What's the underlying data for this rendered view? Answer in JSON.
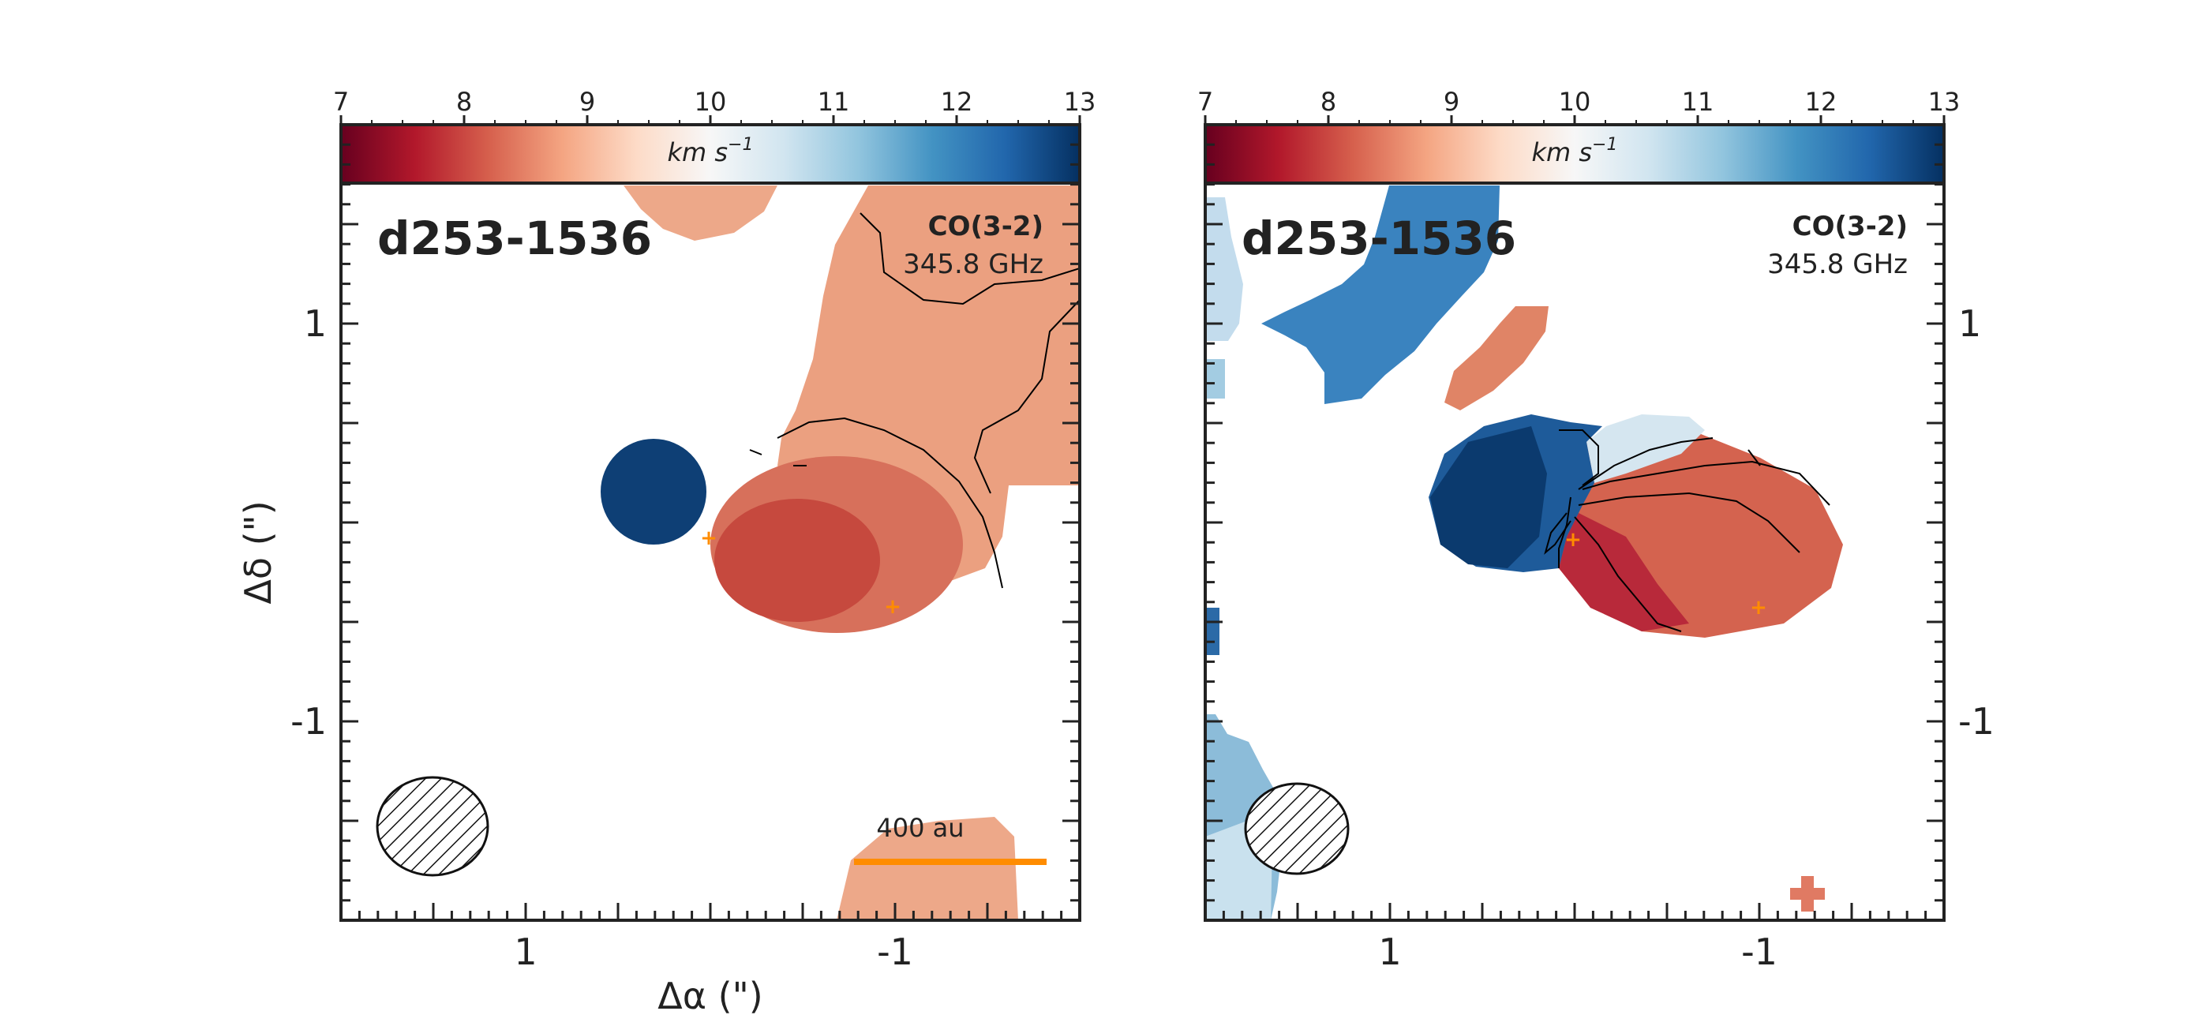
{
  "chart_data": [
    {
      "type": "heatmap",
      "source_name": "d253-1536",
      "line_label": "CO(3-2)",
      "frequency_label": "345.8 GHz",
      "colorbar": {
        "label": "km s⁻¹",
        "label_math": "km s",
        "label_exp": "−1",
        "range": [
          7,
          13
        ],
        "ticks": [
          "7",
          "8",
          "9",
          "10",
          "11",
          "12",
          "13"
        ],
        "colormap": "RdBu"
      },
      "xlabel": "Δα (\")",
      "ylabel": "Δδ (\")",
      "xticks": [
        "1",
        "-1"
      ],
      "yticks": [
        "1",
        "-1"
      ],
      "xlim": [
        2.0,
        -2.0
      ],
      "ylim": [
        -2.0,
        2.0
      ],
      "scale_bar": {
        "label": "400 au"
      },
      "beam": "hatched ellipse, lower-left",
      "velocity_regions": [
        {
          "name": "northeast blob",
          "velocity": 12.9
        },
        {
          "name": "central disk",
          "velocity": 8.3
        },
        {
          "name": "north-west filament",
          "velocity": 8.9
        },
        {
          "name": "south edge",
          "velocity": 9.1
        }
      ],
      "star_markers": 2
    },
    {
      "type": "heatmap",
      "source_name": "d253-1536",
      "line_label": "CO(3-2)",
      "frequency_label": "345.8 GHz",
      "colorbar": {
        "label": "km s⁻¹",
        "label_math": "km s",
        "label_exp": "−1",
        "range": [
          7,
          13
        ],
        "ticks": [
          "7",
          "8",
          "9",
          "10",
          "11",
          "12",
          "13"
        ],
        "colormap": "RdBu"
      },
      "xticks": [
        "1",
        "-1"
      ],
      "yticks": [
        "1",
        "-1"
      ],
      "xlim": [
        2.0,
        -2.0
      ],
      "ylim": [
        -2.0,
        2.0
      ],
      "beam": "hatched ellipse, lower-left",
      "velocity_regions": [
        {
          "name": "rotating disk east (blue)",
          "velocity": 12.5
        },
        {
          "name": "rotating disk west (red)",
          "velocity": 7.8
        },
        {
          "name": "northern blue streamer",
          "velocity": 11.9
        },
        {
          "name": "small red clump",
          "velocity": 8.9
        },
        {
          "name": "eastern edge emission",
          "velocity": 11.0
        }
      ],
      "star_markers": 2
    }
  ]
}
